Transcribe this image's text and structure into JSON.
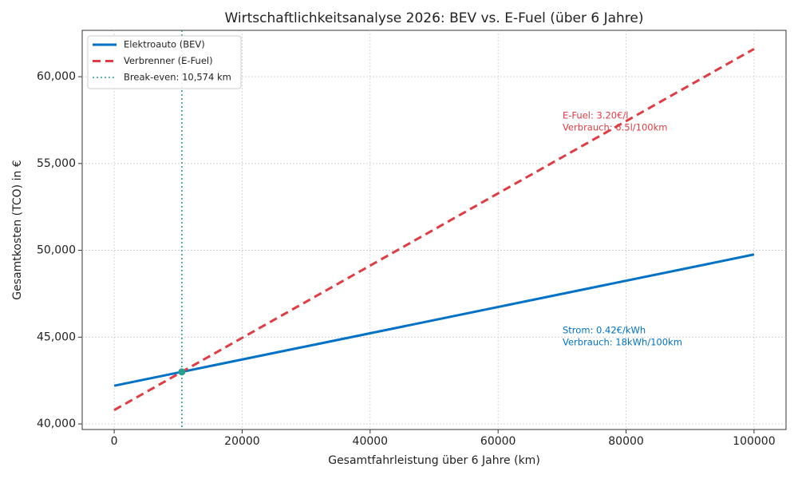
{
  "chart_data": {
    "type": "line",
    "title": "Wirtschaftlichkeitsanalyse 2026: BEV vs. E-Fuel (über 6 Jahre)",
    "x_label": "Gesamtfahrleistung über 6 Jahre (km)",
    "y_label": "Gesamtkosten (TCO) in €",
    "x": [
      0,
      100000
    ],
    "series": [
      {
        "name": "Elektroauto (BEV)",
        "color": "#0072c6",
        "dash": "solid",
        "values": [
          42200,
          49760
        ]
      },
      {
        "name": "Verbrenner (E-Fuel)",
        "color": "#e03c44",
        "dash": "dashed",
        "values": [
          40800,
          61600
        ]
      }
    ],
    "break_even": {
      "name": "Break-even: 10,574 km",
      "color": "#2a9d8f",
      "x": 10574,
      "y": 42999
    },
    "annotations": [
      {
        "lines": [
          "E-Fuel: 3.20€/l",
          "Verbrauch: 6.5l/100km"
        ],
        "color": "#e03c44"
      },
      {
        "lines": [
          "Strom: 0.42€/kWh",
          "Verbrauch: 18kWh/100km"
        ],
        "color": "#0072c6"
      }
    ],
    "xlim": [
      -5000,
      105000
    ],
    "ylim": [
      39680,
      62670
    ],
    "xticks": [
      0,
      20000,
      40000,
      60000,
      80000,
      100000
    ],
    "yticks": [
      {
        "value": 40000,
        "label": "40,000"
      },
      {
        "value": 45000,
        "label": "45,000"
      },
      {
        "value": 50000,
        "label": "50,000"
      },
      {
        "value": 55000,
        "label": "55,000"
      },
      {
        "value": 60000,
        "label": "60,000"
      }
    ],
    "grid": true,
    "legend": "upper left"
  }
}
